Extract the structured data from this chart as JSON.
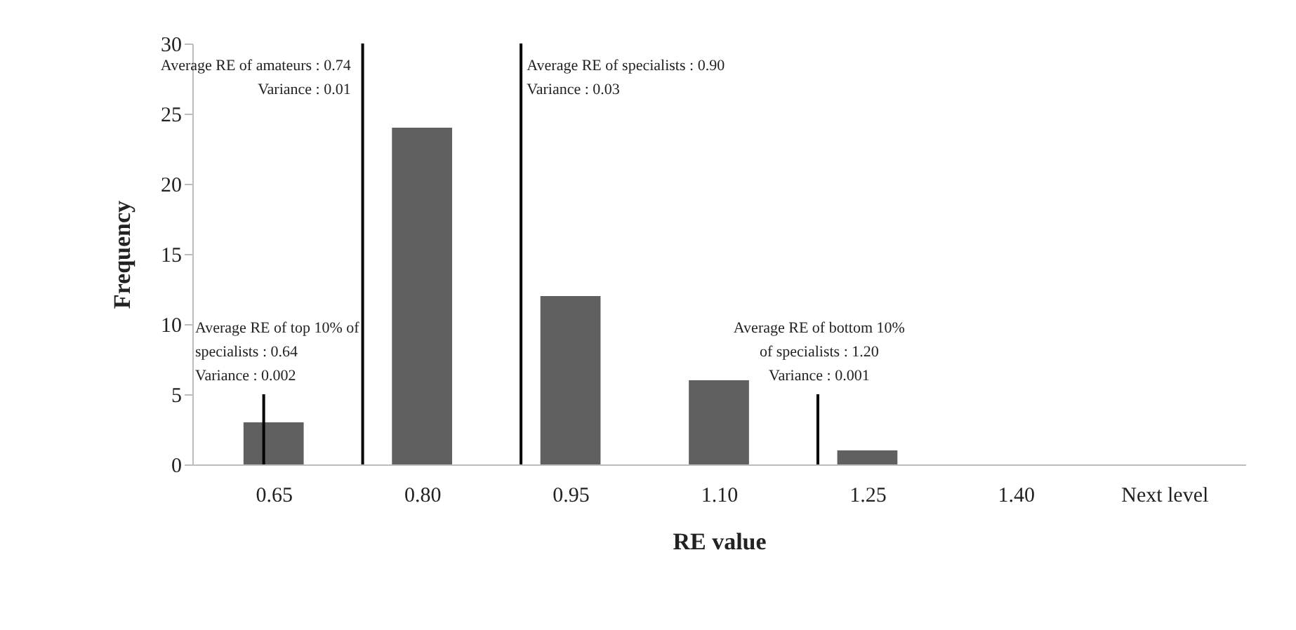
{
  "chart_data": {
    "type": "bar",
    "xlabel": "RE value",
    "ylabel": "Frequency",
    "x": [
      0.65,
      0.8,
      0.95,
      1.1,
      1.25,
      1.4,
      1.55
    ],
    "values": [
      3,
      24,
      12,
      6,
      1,
      0,
      0
    ],
    "color": "#606060",
    "xlim": [
      0.575,
      1.625
    ],
    "xticks": [
      0.65,
      {
        "value": 0.8,
        "label": "0.80"
      },
      0.95,
      {
        "value": 1.1,
        "label": "1.10"
      },
      1.25,
      {
        "value": 1.4,
        "label": "1.40"
      },
      {
        "value": 1.55,
        "label": "Next level"
      }
    ],
    "ylim": [
      0,
      30
    ],
    "yticks": [
      0,
      5,
      10,
      15,
      20,
      25,
      30
    ],
    "grid": false,
    "ref_lines": [
      {
        "axis": "x",
        "value": 0.74,
        "label": "Average RE of amateurs : 0.74\nVariance : 0.01"
      },
      {
        "axis": "x",
        "value": 0.9,
        "label": "Average RE of specialists : 0.90\nVariance : 0.03"
      },
      {
        "axis": "x",
        "value": 0.64,
        "label": "Average RE of top 10% of\nspecialists :  0.64\nVariance :  0.002"
      },
      {
        "axis": "x",
        "value": 1.2,
        "label": "Average RE of bottom 10%\nof specialists : 1.20\nVariance : 0.001"
      }
    ]
  }
}
